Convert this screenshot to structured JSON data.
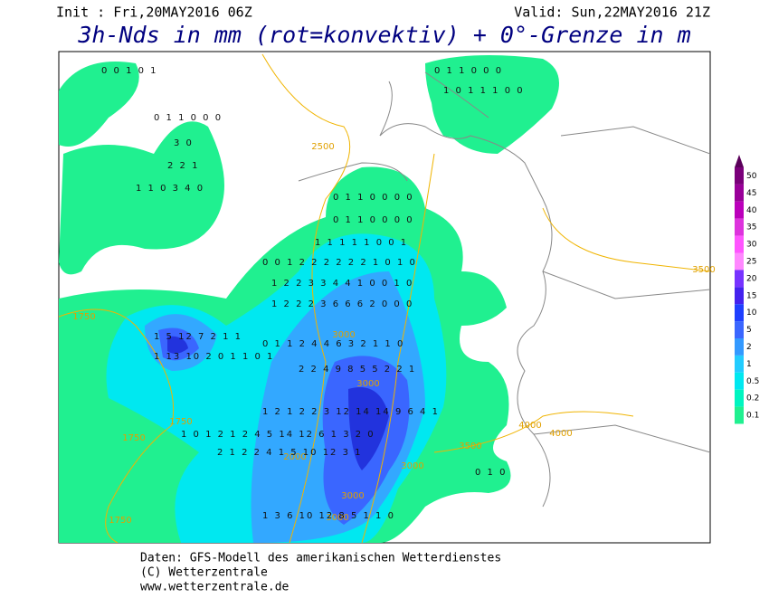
{
  "header": {
    "init": "Init : Fri,20MAY2016 06Z",
    "valid": "Valid: Sun,22MAY2016 21Z",
    "title": "3h-Nds in mm (rot=konvektiv) + 0°-Grenze in m"
  },
  "colorbar": {
    "levels": [
      50,
      45,
      40,
      35,
      30,
      25,
      20,
      15,
      10,
      5,
      2,
      1,
      0.5,
      0.2,
      0.1
    ],
    "colors": [
      "#7a007a",
      "#990099",
      "#bb00bb",
      "#dd33dd",
      "#ff55ff",
      "#ff88ff",
      "#7733ff",
      "#4422ee",
      "#1f3fff",
      "#3a66ff",
      "#3399ff",
      "#22ccff",
      "#00e8f0",
      "#00f5c0",
      "#20f090"
    ]
  },
  "contour_labels": [
    "2500",
    "3500",
    "1750",
    "3000",
    "3000",
    "1750",
    "1750",
    "2000",
    "3000",
    "3500",
    "4000",
    "4000",
    "3000",
    "3000",
    "1750"
  ],
  "grid_rows": [
    "0 0 1 0 1",
    "0 1 1 0 0 0",
    "1 0 1 1 1 0 0",
    "0 1 1 0 0 0",
    "3 0",
    "2 2 1",
    "1 1 0 3 4 0",
    "0 1 1 0 0 0 0",
    "0 1 1 0 0 0 0",
    "1 1 1 1 1 0 0 1",
    "0 0 1 2 2 2 2 2 2 1 0 1 0",
    "1 2 2 3 3 4 4 1 0 0 1 0",
    "1 2 2 2 3 6 6 6 2 0 0 0",
    "1 5 12 7 2 1 1",
    "1 13 10 2 0 1 1 0 1",
    "0 1 1 2 4 4 6 3 2 1 1 0",
    "2 2 4 9 8 5 5 2 2 1",
    "1 2 1 2 2 3 12 14 14 9 6 4 1",
    "1 0 1 2 1 2 4 5 14 12 6 1 3 2 0",
    "2 1 2 2 4 1 5 10 12 3 1",
    "1 3 6 10 12 8 5 1 1 0",
    "0 1 0"
  ],
  "footer": [
    "Daten: GFS-Modell des amerikanischen Wetterdienstes",
    "(C) Wetterzentrale",
    "www.wetterzentrale.de"
  ]
}
